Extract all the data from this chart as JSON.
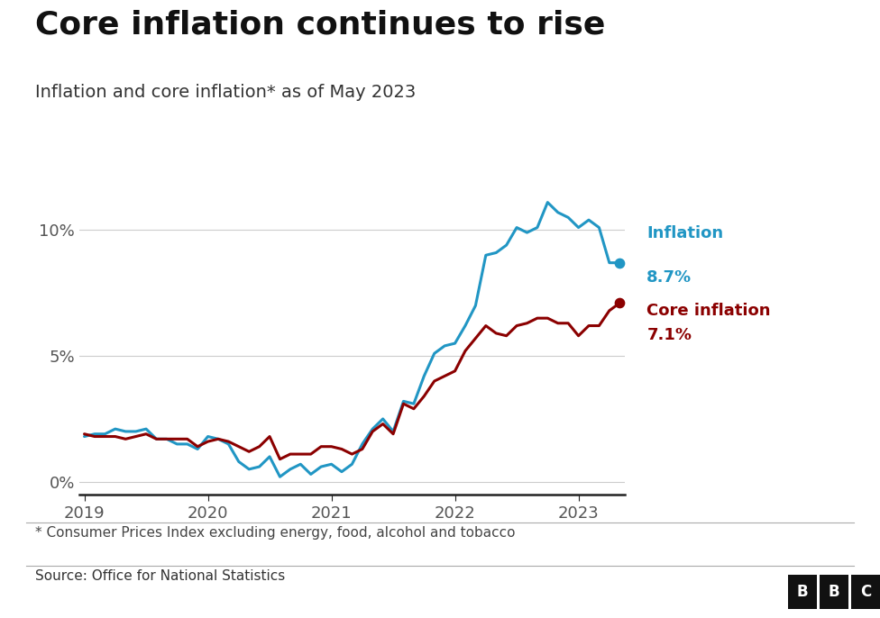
{
  "title": "Core inflation continues to rise",
  "subtitle": "Inflation and core inflation* as of May 2023",
  "footnote": "* Consumer Prices Index excluding energy, food, alcohol and tobacco",
  "source": "Source: Office for National Statistics",
  "inflation_color": "#2196C4",
  "core_color": "#8B0000",
  "background_color": "#ffffff",
  "ylim": [
    -0.5,
    13.0
  ],
  "inflation_label_line1": "Inflation",
  "inflation_label_line2": "8.7%",
  "core_label_line1": "Core inflation",
  "core_label_line2": "7.1%",
  "inflation_data": {
    "values": [
      1.8,
      1.9,
      1.9,
      2.1,
      2.0,
      2.0,
      2.1,
      1.7,
      1.7,
      1.5,
      1.5,
      1.3,
      1.8,
      1.7,
      1.5,
      0.8,
      0.5,
      0.6,
      1.0,
      0.2,
      0.5,
      0.7,
      0.3,
      0.6,
      0.7,
      0.4,
      0.7,
      1.5,
      2.1,
      2.5,
      2.0,
      3.2,
      3.1,
      4.2,
      5.1,
      5.4,
      5.5,
      6.2,
      7.0,
      9.0,
      9.1,
      9.4,
      10.1,
      9.9,
      10.1,
      11.1,
      10.7,
      10.5,
      10.1,
      10.4,
      10.1,
      8.7,
      8.7
    ]
  },
  "core_data": {
    "values": [
      1.9,
      1.8,
      1.8,
      1.8,
      1.7,
      1.8,
      1.9,
      1.7,
      1.7,
      1.7,
      1.7,
      1.4,
      1.6,
      1.7,
      1.6,
      1.4,
      1.2,
      1.4,
      1.8,
      0.9,
      1.1,
      1.1,
      1.1,
      1.4,
      1.4,
      1.3,
      1.1,
      1.3,
      2.0,
      2.3,
      1.9,
      3.1,
      2.9,
      3.4,
      4.0,
      4.2,
      4.4,
      5.2,
      5.7,
      6.2,
      5.9,
      5.8,
      6.2,
      6.3,
      6.5,
      6.5,
      6.3,
      6.3,
      5.8,
      6.2,
      6.2,
      6.8,
      7.1
    ]
  },
  "yticks": [
    0,
    5,
    10
  ],
  "ytick_labels": [
    "0%",
    "5%",
    "10%"
  ],
  "xtick_years": [
    "2019",
    "2020",
    "2021",
    "2022",
    "2023"
  ],
  "xtick_positions": [
    0,
    12,
    24,
    36,
    48
  ]
}
